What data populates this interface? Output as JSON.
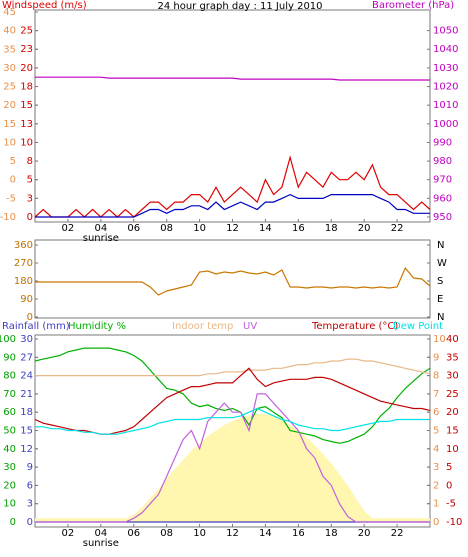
{
  "chart_data": [
    {
      "type": "line",
      "title": "24 hour graph day : 11 July 2010",
      "x": [
        0,
        0.5,
        1,
        1.5,
        2,
        2.5,
        3,
        3.5,
        4,
        4.5,
        5,
        5.5,
        6,
        6.5,
        7,
        7.5,
        8,
        8.5,
        9,
        9.5,
        10,
        10.5,
        11,
        11.5,
        12,
        12.5,
        13,
        13.5,
        14,
        14.5,
        15,
        15.5,
        16,
        16.5,
        17,
        17.5,
        18,
        18.5,
        19,
        19.5,
        20,
        20.5,
        21,
        21.5,
        22,
        22.5,
        23,
        23.5,
        24
      ],
      "xlim": [
        0,
        24
      ],
      "xticks": [
        {
          "value": 2,
          "label": "02"
        },
        {
          "value": 4,
          "label": "04"
        },
        {
          "value": 6,
          "label": "06"
        },
        {
          "value": 8,
          "label": "08"
        },
        10,
        12,
        14,
        16,
        18,
        20,
        22
      ],
      "annotations": [
        {
          "text": "sunrise",
          "x": 4
        }
      ],
      "ylim": [
        0,
        25
      ],
      "yticks": [
        0,
        {
          "value": 2.5,
          "label": "3"
        },
        5,
        {
          "value": 7.5,
          "label": "8"
        },
        10,
        {
          "value": 12.5,
          "label": "13"
        },
        15,
        {
          "value": 17.5,
          "label": "18"
        },
        20,
        {
          "value": 22.5,
          "label": "23"
        },
        25
      ],
      "y2lim": [
        950,
        1050
      ],
      "y2ticks": [
        950,
        960,
        970,
        980,
        990,
        1000,
        1010,
        1020,
        1030,
        1040,
        1050
      ],
      "y3lim": [
        -10,
        45
      ],
      "y3ticks": [
        -10,
        -5,
        0,
        5,
        10,
        15,
        20,
        25,
        30,
        35,
        40,
        45
      ],
      "axis_colors": {
        "y": "#d40000",
        "y2": "#c000c0",
        "y3": "#e8904a"
      },
      "series": [
        {
          "name": "Windspeed (m/s)",
          "color": "#e00000",
          "axis": "y",
          "values": [
            0,
            1,
            0,
            0,
            0,
            1,
            0,
            1,
            0,
            1,
            0,
            1,
            0,
            1,
            2,
            2,
            1,
            2,
            2,
            3,
            3,
            2,
            4,
            2,
            3,
            4,
            3,
            2,
            5,
            3,
            4,
            8,
            4,
            6,
            5,
            4,
            6,
            5,
            5,
            6,
            5,
            7,
            4,
            3,
            3,
            2,
            1,
            2,
            1
          ]
        },
        {
          "color": "#0000c0",
          "axis": "y",
          "values": [
            0,
            0,
            0,
            0,
            0,
            0,
            0,
            0,
            0,
            0,
            0,
            0,
            0,
            0.5,
            1,
            1,
            0.5,
            1,
            1,
            1.5,
            1.5,
            1,
            2,
            1,
            1.5,
            2,
            1.5,
            1,
            2,
            2,
            2.5,
            3,
            2.5,
            2.5,
            2.5,
            2.5,
            3,
            3,
            3,
            3,
            3,
            3,
            2.5,
            2,
            1,
            1,
            0.5,
            0.5,
            0.5
          ]
        },
        {
          "name": "Barometer (hPa)",
          "color": "#c000c0",
          "axis": "y2",
          "values": [
            1025,
            1025,
            1025,
            1025,
            1025,
            1025,
            1025,
            1025,
            1025,
            1024.5,
            1024.5,
            1024.5,
            1024.5,
            1024.5,
            1024.5,
            1024.5,
            1024.5,
            1024.5,
            1024.5,
            1024.5,
            1024.5,
            1024.5,
            1024.5,
            1024.5,
            1024.5,
            1024,
            1024,
            1024,
            1024,
            1024,
            1024,
            1024,
            1024,
            1024,
            1024,
            1024,
            1024,
            1023.5,
            1023.5,
            1023.5,
            1023.5,
            1023.5,
            1023.5,
            1023.5,
            1023.5,
            1023.5,
            1023.5,
            1023.5,
            1023.5
          ]
        }
      ]
    },
    {
      "type": "line",
      "x": [
        0,
        0.5,
        1,
        1.5,
        2,
        2.5,
        3,
        3.5,
        4,
        4.5,
        5,
        5.5,
        6,
        6.5,
        7,
        7.5,
        8,
        8.5,
        9,
        9.5,
        10,
        10.5,
        11,
        11.5,
        12,
        12.5,
        13,
        13.5,
        14,
        14.5,
        15,
        15.5,
        16,
        16.5,
        17,
        17.5,
        18,
        18.5,
        19,
        19.5,
        20,
        20.5,
        21,
        21.5,
        22,
        22.5,
        23,
        23.5,
        24
      ],
      "xlim": [
        0,
        24
      ],
      "ylim": [
        0,
        360
      ],
      "yticks": [
        0,
        90,
        180,
        270,
        360
      ],
      "y2lim": [
        0,
        360
      ],
      "y2ticks": [
        {
          "value": 0,
          "label": "N"
        },
        {
          "value": 90,
          "label": "E"
        },
        {
          "value": 180,
          "label": "S"
        },
        {
          "value": 270,
          "label": "W"
        },
        {
          "value": 360,
          "label": "N"
        }
      ],
      "axis_colors": {
        "y": "#c07000",
        "y2": "#000000"
      },
      "series": [
        {
          "color": "#c87800",
          "axis": "y",
          "values": [
            175,
            175,
            175,
            175,
            175,
            175,
            175,
            175,
            175,
            175,
            175,
            175,
            175,
            175,
            150,
            110,
            130,
            140,
            150,
            160,
            225,
            230,
            215,
            225,
            220,
            230,
            220,
            215,
            225,
            210,
            235,
            150,
            150,
            145,
            150,
            150,
            145,
            150,
            150,
            145,
            150,
            145,
            150,
            145,
            150,
            245,
            195,
            190,
            155
          ]
        }
      ]
    },
    {
      "type": "line",
      "x": [
        0,
        0.5,
        1,
        1.5,
        2,
        2.5,
        3,
        3.5,
        4,
        4.5,
        5,
        5.5,
        6,
        6.5,
        7,
        7.5,
        8,
        8.5,
        9,
        9.5,
        10,
        10.5,
        11,
        11.5,
        12,
        12.5,
        13,
        13.5,
        14,
        14.5,
        15,
        15.5,
        16,
        16.5,
        17,
        17.5,
        18,
        18.5,
        19,
        19.5,
        20,
        20.5,
        21,
        21.5,
        22,
        22.5,
        23,
        23.5,
        24
      ],
      "xlim": [
        0,
        24
      ],
      "xticks": [
        {
          "value": 2,
          "label": "02"
        },
        {
          "value": 4,
          "label": "04"
        },
        {
          "value": 6,
          "label": "06"
        },
        {
          "value": 8,
          "label": "08"
        },
        10,
        12,
        14,
        16,
        18,
        20,
        22
      ],
      "annotations": [
        {
          "text": "sunrise",
          "x": 4
        }
      ],
      "ylim": [
        0,
        100
      ],
      "yticks": [
        0,
        10,
        20,
        30,
        40,
        50,
        60,
        70,
        80,
        90,
        100
      ],
      "y2lim": [
        -10,
        40
      ],
      "y2ticks": [
        -10,
        -5,
        0,
        5,
        10,
        15,
        20,
        25,
        30,
        35,
        40
      ],
      "y3lim": [
        0,
        30
      ],
      "y3ticks": [
        0,
        3,
        6,
        9,
        12,
        15,
        18,
        21,
        24,
        27,
        30
      ],
      "y4lim": [
        0,
        10
      ],
      "y4ticks": [
        0,
        1,
        2,
        3,
        4,
        5,
        6,
        7,
        8,
        9,
        10
      ],
      "axis_colors": {
        "y": "#00a000",
        "y2": "#c00000",
        "y3": "#4040c0",
        "y4": "#e8904a"
      },
      "series": [
        {
          "color": "#fff6b0",
          "axis": "y4",
          "area": true,
          "values": [
            0.2,
            0.2,
            0.2,
            0.2,
            0.2,
            0.2,
            0.2,
            0.2,
            0.2,
            0.2,
            0.2,
            0.2,
            0.4,
            0.8,
            1.3,
            1.8,
            2.4,
            2.9,
            3.4,
            3.9,
            4.3,
            4.7,
            5,
            5.3,
            5.5,
            5.7,
            5.8,
            5.9,
            5.9,
            5.8,
            5.6,
            5.3,
            5,
            4.6,
            4.2,
            3.7,
            3.2,
            2.6,
            2,
            1.3,
            0.6,
            0.2,
            0.2,
            0.2,
            0.2,
            0.2,
            0.2,
            0.2,
            0.2
          ]
        },
        {
          "name": "Rainfall (mm)",
          "color": "#4040c0",
          "axis": "y3",
          "values": [
            0,
            0,
            0,
            0,
            0,
            0,
            0,
            0,
            0,
            0,
            0,
            0,
            0,
            0,
            0,
            0,
            0,
            0,
            0,
            0,
            0,
            0,
            0,
            0,
            0,
            0,
            0,
            0,
            0,
            0,
            0,
            0,
            0,
            0,
            0,
            0,
            0,
            0,
            0,
            0,
            0,
            0,
            0,
            0,
            0,
            0,
            0,
            0,
            0
          ]
        },
        {
          "name": "Humidity %",
          "color": "#00b000",
          "axis": "y",
          "values": [
            88,
            89,
            90,
            91,
            93,
            94,
            95,
            95,
            95,
            95,
            94,
            93,
            91,
            88,
            83,
            78,
            73,
            72,
            70,
            65,
            63,
            64,
            62,
            61,
            62,
            60,
            53,
            62,
            63,
            60,
            57,
            50,
            49,
            48,
            47,
            45,
            44,
            43,
            44,
            46,
            48,
            52,
            58,
            62,
            68,
            73,
            77,
            81,
            84
          ]
        },
        {
          "name": "Indoor temp",
          "color": "#e8b888",
          "axis": "y2",
          "values": [
            30,
            30,
            30,
            30,
            30,
            30,
            30,
            30,
            30,
            30,
            30,
            30,
            30,
            30,
            30,
            30,
            30,
            30,
            30,
            30,
            30,
            30.5,
            30.5,
            31,
            31,
            31,
            31.5,
            31.5,
            31.5,
            32,
            32,
            32.5,
            33,
            33,
            33.5,
            33.5,
            34,
            34,
            34.5,
            34.5,
            34,
            34,
            33.5,
            33,
            32.5,
            32,
            31.5,
            31,
            30.5
          ]
        },
        {
          "name": "UV",
          "color": "#c060e0",
          "axis": "y4",
          "values": [
            0,
            0,
            0,
            0,
            0,
            0,
            0,
            0,
            0,
            0,
            0,
            0,
            0.2,
            0.5,
            1,
            1.5,
            2.5,
            3.5,
            4.5,
            5,
            4,
            5.5,
            6,
            6.5,
            6,
            6,
            5,
            7,
            7,
            6.5,
            6,
            5.5,
            5,
            4,
            3.5,
            2.5,
            2,
            1,
            0.3,
            0,
            0,
            0,
            0,
            0,
            0,
            0,
            0,
            0,
            0
          ]
        },
        {
          "name": "Temperature (°C)",
          "color": "#c00000",
          "axis": "y2",
          "values": [
            18,
            17,
            16.5,
            16,
            15.5,
            15,
            15,
            14.5,
            14,
            14,
            14.5,
            15,
            16,
            18,
            20,
            22,
            24,
            25,
            26,
            27,
            27,
            27.5,
            28,
            28,
            28,
            30,
            32,
            29,
            27,
            28,
            28.5,
            29,
            29,
            29,
            29.5,
            29.5,
            29,
            28,
            27,
            26,
            25,
            24,
            23,
            22.5,
            22,
            21.5,
            21,
            21,
            20.5
          ]
        },
        {
          "name": "Dew Point",
          "color": "#00e0e8",
          "axis": "y2",
          "values": [
            16,
            16,
            15.5,
            15.5,
            15,
            15,
            14.5,
            14.5,
            14,
            14,
            14,
            14.5,
            15,
            15.5,
            16,
            17,
            17.5,
            18,
            18,
            18,
            18,
            18.5,
            18.5,
            18.5,
            18.5,
            19,
            20,
            21,
            20,
            19,
            18,
            17.5,
            16.5,
            16,
            15.5,
            15.5,
            15,
            15,
            15.5,
            16,
            16.5,
            17,
            17.5,
            17.5,
            18,
            18,
            18,
            18,
            18
          ]
        }
      ]
    }
  ]
}
